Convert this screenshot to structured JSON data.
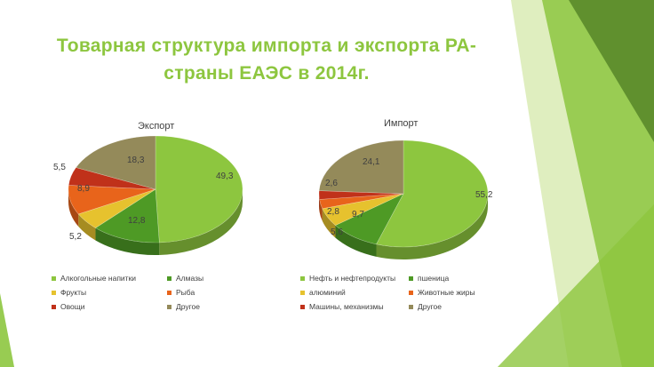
{
  "slide": {
    "title_line1": "Товарная структура импорта и экспорта РА-",
    "title_line2": "страны ЕАЭС в 2014г."
  },
  "colors": {
    "title": "#8dc63f",
    "deco_dark": "#5a8a2a",
    "deco_mid": "#8dc63f",
    "deco_light": "#c5e08a"
  },
  "chart_data": [
    {
      "type": "pie",
      "title": "Экспорт",
      "categories": [
        "Алкогольные напитки",
        "Алмазы",
        "Фрукты",
        "Рыба",
        "Овощи",
        "Другое"
      ],
      "values": [
        49.3,
        12.8,
        5.2,
        8.9,
        5.5,
        18.3
      ],
      "labels": [
        "49,3",
        "12,8",
        "5,2",
        "8,9",
        "5,5",
        "18,3"
      ],
      "colors": [
        "#8dc63f",
        "#4e9a25",
        "#e6c22e",
        "#e8641b",
        "#c0311a",
        "#948a5a"
      ],
      "legend_placement": "bottom"
    },
    {
      "type": "pie",
      "title": "Импорт",
      "categories": [
        "Нефть и нефтепродукты",
        "пшеница",
        "алюминий",
        "Животные жиры",
        "Машины, механизмы",
        "Другое"
      ],
      "values": [
        55.2,
        9.7,
        5.6,
        2.8,
        2.6,
        24.1
      ],
      "labels": [
        "55,2",
        "9,7",
        "5,6",
        "2,8",
        "2,6",
        "24,1"
      ],
      "colors": [
        "#8dc63f",
        "#4e9a25",
        "#e6c22e",
        "#e8641b",
        "#c0311a",
        "#948a5a"
      ],
      "legend_placement": "bottom"
    }
  ]
}
